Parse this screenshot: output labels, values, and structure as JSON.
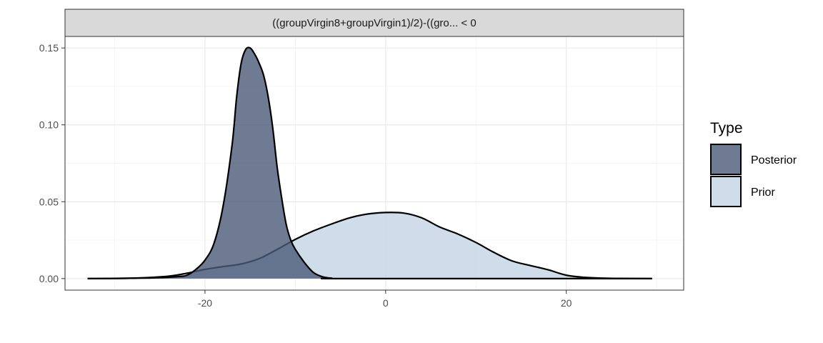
{
  "chart_data": {
    "type": "area",
    "title": "",
    "xlabel": "",
    "ylabel": "",
    "facet_label": "((groupVirgin8+groupVirgin1)/2)-((gro... < 0",
    "xlim": [
      -35.5,
      33
    ],
    "ylim": [
      -0.0075,
      0.1575
    ],
    "x_ticks": [
      -20,
      0,
      20
    ],
    "x_tick_labels": [
      "-20",
      "0",
      "20"
    ],
    "y_ticks": [
      0,
      0.05,
      0.1,
      0.15
    ],
    "y_tick_labels": [
      "0.00",
      "0.05",
      "0.10",
      "0.15"
    ],
    "grid": true,
    "legend": {
      "title": "Type",
      "position": "right"
    },
    "series": [
      {
        "name": "Prior",
        "color": "#c2d4e3",
        "points": [
          [
            -33,
            0.0
          ],
          [
            -28,
            0.0003
          ],
          [
            -24,
            0.0016
          ],
          [
            -22,
            0.0035
          ],
          [
            -20,
            0.006
          ],
          [
            -18,
            0.0078
          ],
          [
            -16,
            0.0095
          ],
          [
            -14,
            0.013
          ],
          [
            -12,
            0.019
          ],
          [
            -10,
            0.0255
          ],
          [
            -8,
            0.031
          ],
          [
            -6,
            0.0355
          ],
          [
            -4,
            0.0395
          ],
          [
            -2,
            0.042
          ],
          [
            0,
            0.043
          ],
          [
            2,
            0.0426
          ],
          [
            4,
            0.0395
          ],
          [
            6,
            0.0335
          ],
          [
            8,
            0.029
          ],
          [
            10,
            0.0235
          ],
          [
            12,
            0.017
          ],
          [
            14,
            0.0115
          ],
          [
            16,
            0.0085
          ],
          [
            18,
            0.0057
          ],
          [
            20,
            0.0022
          ],
          [
            22,
            0.0008
          ],
          [
            24,
            0.0003
          ],
          [
            26,
            0.0001
          ],
          [
            29.5,
            0.0
          ]
        ]
      },
      {
        "name": "Posterior",
        "color": "#4a5a78",
        "points": [
          [
            -33,
            0.0
          ],
          [
            -26,
            0.0004
          ],
          [
            -23,
            0.0013
          ],
          [
            -22,
            0.0022
          ],
          [
            -21,
            0.006
          ],
          [
            -20,
            0.012
          ],
          [
            -19,
            0.023
          ],
          [
            -18,
            0.047
          ],
          [
            -17,
            0.087
          ],
          [
            -16.5,
            0.118
          ],
          [
            -16,
            0.14
          ],
          [
            -15.5,
            0.149
          ],
          [
            -15,
            0.15
          ],
          [
            -14.5,
            0.146
          ],
          [
            -14,
            0.14
          ],
          [
            -13.5,
            0.132
          ],
          [
            -13,
            0.118
          ],
          [
            -12.5,
            0.098
          ],
          [
            -12,
            0.072
          ],
          [
            -11.5,
            0.052
          ],
          [
            -11,
            0.035
          ],
          [
            -10.5,
            0.025
          ],
          [
            -10,
            0.019
          ],
          [
            -9,
            0.0105
          ],
          [
            -8,
            0.004
          ],
          [
            -7,
            0.0012
          ],
          [
            -6,
            0.0003
          ],
          [
            -4,
            0.0
          ],
          [
            29.5,
            0.0
          ]
        ]
      }
    ]
  }
}
